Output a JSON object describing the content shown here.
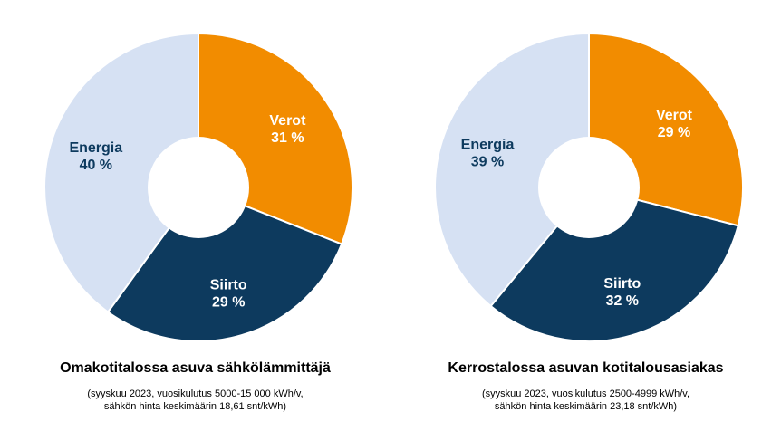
{
  "colors": {
    "Energia": "#d6e1f3",
    "Verot": "#f28c00",
    "Siirto": "#0d3a5e",
    "label_on_light": "#0d3a5e",
    "label_on_dark": "#ffffff"
  },
  "chart_data": [
    {
      "type": "pie",
      "donut": true,
      "title": "Omakotitalossa asuva sähkölämmittäjä",
      "note_lines": [
        "(syyskuu 2023, vuosikulutus 5000-15 000 kWh/v,",
        "sähkön hinta keskimäärin 18,61 snt/kWh)"
      ],
      "slices": [
        {
          "name": "Verot",
          "value": 31,
          "label": "31 %"
        },
        {
          "name": "Siirto",
          "value": 29,
          "label": "29 %"
        },
        {
          "name": "Energia",
          "value": 40,
          "label": "40 %"
        }
      ]
    },
    {
      "type": "pie",
      "donut": true,
      "title": "Kerrostalossa asuvan kotitalousasiakas",
      "note_lines": [
        "(syyskuu 2023, vuosikulutus 2500-4999 kWh/v,",
        "sähkön hinta keskimäärin 23,18 snt/kWh)"
      ],
      "slices": [
        {
          "name": "Verot",
          "value": 29,
          "label": "29 %"
        },
        {
          "name": "Siirto",
          "value": 32,
          "label": "32 %"
        },
        {
          "name": "Energia",
          "value": 39,
          "label": "39 %"
        }
      ]
    }
  ]
}
